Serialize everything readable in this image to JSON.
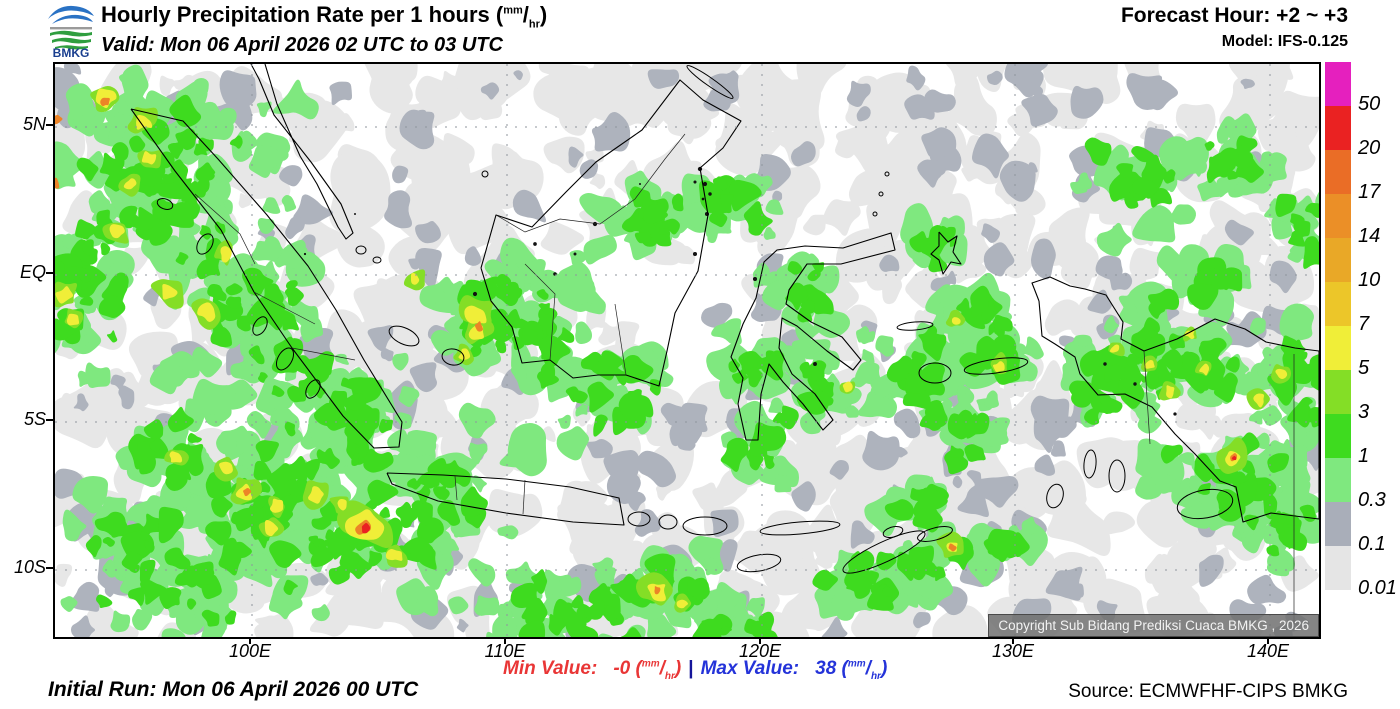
{
  "header": {
    "title": "Hourly Precipitation Rate per 1 hours",
    "valid": "Valid: Mon 06 April 2026 02 UTC to 03 UTC",
    "forecast_hour": "Forecast Hour: +2 ~ +3",
    "model": "Model: IFS-0.125",
    "logo_text": "BMKG"
  },
  "unit": {
    "open": "(",
    "sup": "mm",
    "slash": "/",
    "sub": "hr",
    "close": ")"
  },
  "map": {
    "lat_labels": [
      "5N",
      "EQ",
      "5S",
      "10S"
    ],
    "lon_labels": [
      "100E",
      "110E",
      "120E",
      "130E",
      "140E"
    ],
    "copyright": "Copyright Sub Bidang Prediksi Cuaca BMKG , 2026"
  },
  "legend": {
    "items": [
      {
        "label": "50",
        "color": "#e520be"
      },
      {
        "label": "20",
        "color": "#ea2222"
      },
      {
        "label": "17",
        "color": "#ea6d26"
      },
      {
        "label": "14",
        "color": "#eb8f27"
      },
      {
        "label": "10",
        "color": "#e9a827"
      },
      {
        "label": "7",
        "color": "#ecc629"
      },
      {
        "label": "5",
        "color": "#f0ee38"
      },
      {
        "label": "3",
        "color": "#84de26"
      },
      {
        "label": "1",
        "color": "#3edb1f"
      },
      {
        "label": "0.3",
        "color": "#7fe87f"
      },
      {
        "label": "0.1",
        "color": "#a9aeb9"
      },
      {
        "label": "0.01",
        "color": "#e5e5e5"
      }
    ]
  },
  "footer": {
    "initial_run": "Initial Run: Mon 06 April 2026 00 UTC",
    "min_label": "Min Value:",
    "min_value": "-0",
    "separator": "|",
    "max_label": "Max Value:",
    "max_value": "38",
    "source": "Source: ECMWFHF-CIPS BMKG",
    "min_color": "#e93636",
    "max_color": "#2433d9"
  }
}
